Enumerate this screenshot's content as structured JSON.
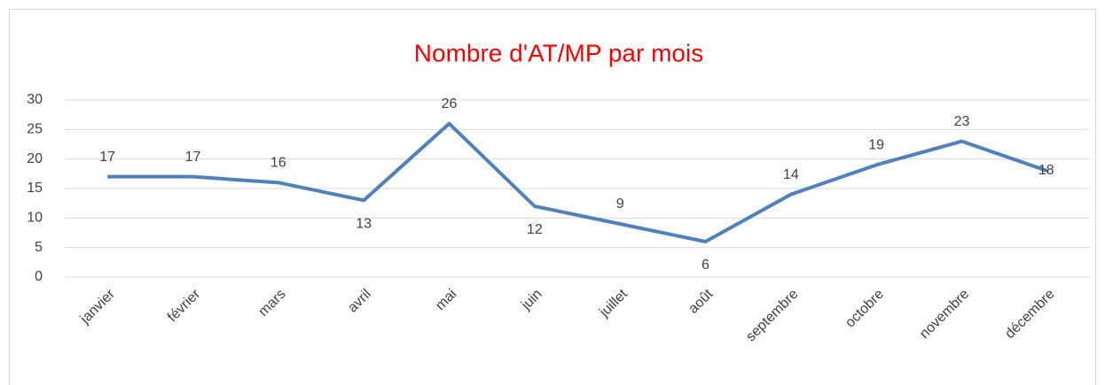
{
  "chart_data": {
    "type": "line",
    "title": "Nombre d'AT/MP par mois",
    "categories": [
      "janvier",
      "février",
      "mars",
      "avril",
      "mai",
      "juin",
      "juillet",
      "août",
      "septembre",
      "octobre",
      "novembre",
      "décembre"
    ],
    "series": [
      {
        "name": "AT/MP",
        "color": "#4f81bd",
        "values": [
          17,
          17,
          16,
          13,
          26,
          12,
          9,
          6,
          14,
          19,
          23,
          18
        ]
      }
    ],
    "ylim": [
      0,
      30
    ],
    "yticks": [
      0,
      5,
      10,
      15,
      20,
      25,
      30
    ],
    "grid": true,
    "title_color": "#ff0000"
  }
}
